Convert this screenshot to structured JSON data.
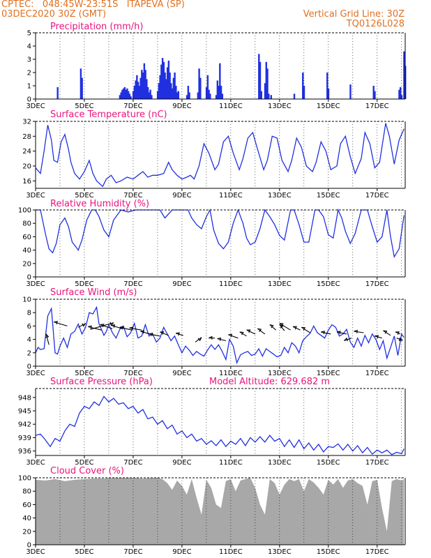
{
  "header": {
    "line1": "CPTEC:   048:45W-23:51S   ITAPEVA (SP)",
    "line2": "03DEC2020 30Z (GMT)",
    "right1": "Vertical Grid Line: 30Z",
    "right2": "TQ0126L028"
  },
  "colors": {
    "header": "#e07020",
    "title": "#e8147e",
    "line": "#2030e0",
    "bar": "#2030e0",
    "cloud": "#a8a8a8"
  },
  "x_labels": [
    "3DEC",
    "5DEC",
    "7DEC",
    "9DEC",
    "11DEC",
    "13DEC",
    "15DEC",
    "17DEC"
  ],
  "chart_data": [
    {
      "type": "bar",
      "title": "Precipitation (mm/h)",
      "ylim": [
        0,
        5
      ],
      "yticks": [
        0,
        1,
        2,
        3,
        4,
        5
      ],
      "x_unit": "days since 3DEC",
      "bars": [
        [
          0.9,
          0.9
        ],
        [
          1.85,
          2.3
        ],
        [
          1.9,
          1.6
        ],
        [
          3.45,
          0.3
        ],
        [
          3.5,
          0.5
        ],
        [
          3.55,
          0.7
        ],
        [
          3.6,
          0.8
        ],
        [
          3.65,
          0.9
        ],
        [
          3.7,
          0.7
        ],
        [
          3.75,
          0.8
        ],
        [
          3.8,
          0.6
        ],
        [
          3.85,
          0.4
        ],
        [
          3.9,
          0.2
        ],
        [
          4.0,
          0.6
        ],
        [
          4.05,
          1.0
        ],
        [
          4.1,
          1.4
        ],
        [
          4.15,
          1.8
        ],
        [
          4.2,
          1.3
        ],
        [
          4.25,
          1.0
        ],
        [
          4.3,
          1.6
        ],
        [
          4.35,
          2.2
        ],
        [
          4.4,
          2.0
        ],
        [
          4.45,
          2.7
        ],
        [
          4.5,
          2.2
        ],
        [
          4.55,
          1.5
        ],
        [
          4.6,
          0.9
        ],
        [
          4.65,
          0.5
        ],
        [
          4.7,
          0.7
        ],
        [
          4.75,
          0.3
        ],
        [
          5.0,
          0.6
        ],
        [
          5.05,
          1.2
        ],
        [
          5.1,
          1.8
        ],
        [
          5.15,
          2.6
        ],
        [
          5.2,
          3.1
        ],
        [
          5.25,
          2.8
        ],
        [
          5.3,
          2.0
        ],
        [
          5.35,
          1.5
        ],
        [
          5.4,
          2.4
        ],
        [
          5.45,
          2.9
        ],
        [
          5.5,
          2.0
        ],
        [
          5.55,
          1.2
        ],
        [
          5.6,
          0.8
        ],
        [
          5.65,
          1.6
        ],
        [
          5.7,
          2.0
        ],
        [
          5.75,
          1.0
        ],
        [
          5.8,
          0.5
        ],
        [
          5.85,
          0.6
        ],
        [
          6.2,
          0.3
        ],
        [
          6.25,
          1.0
        ],
        [
          6.3,
          0.5
        ],
        [
          6.65,
          0.5
        ],
        [
          6.7,
          2.3
        ],
        [
          6.75,
          1.6
        ],
        [
          7.0,
          0.9
        ],
        [
          7.05,
          1.8
        ],
        [
          7.1,
          0.7
        ],
        [
          7.15,
          0.4
        ],
        [
          7.4,
          0.3
        ],
        [
          7.45,
          1.4
        ],
        [
          7.5,
          1.0
        ],
        [
          7.55,
          2.7
        ],
        [
          7.6,
          1.0
        ],
        [
          7.65,
          0.4
        ],
        [
          9.15,
          3.4
        ],
        [
          9.2,
          2.8
        ],
        [
          9.25,
          0.6
        ],
        [
          9.4,
          1.2
        ],
        [
          9.45,
          2.8
        ],
        [
          9.5,
          2.3
        ],
        [
          9.55,
          0.4
        ],
        [
          9.65,
          0.3
        ],
        [
          10.6,
          0.4
        ],
        [
          10.95,
          2.0
        ],
        [
          11.0,
          1.0
        ],
        [
          11.95,
          2.0
        ],
        [
          12.0,
          0.8
        ],
        [
          12.9,
          1.1
        ],
        [
          13.85,
          1.0
        ],
        [
          13.9,
          0.6
        ],
        [
          14.9,
          0.7
        ],
        [
          14.95,
          0.9
        ],
        [
          15.0,
          0.3
        ],
        [
          15.1,
          3.6
        ],
        [
          15.15,
          2.5
        ]
      ]
    },
    {
      "type": "line",
      "title": "Surface Temperature (nC)",
      "ylim": [
        14,
        32
      ],
      "yticks": [
        16,
        20,
        24,
        28,
        32
      ],
      "x": [
        0.0,
        0.2,
        0.35,
        0.5,
        0.65,
        0.75,
        0.9,
        1.05,
        1.2,
        1.35,
        1.45,
        1.6,
        1.8,
        2.0,
        2.2,
        2.35,
        2.5,
        2.75,
        2.9,
        3.1,
        3.3,
        3.5,
        3.75,
        4.0,
        4.2,
        4.4,
        4.6,
        4.8,
        5.0,
        5.25,
        5.45,
        5.6,
        5.8,
        6.0,
        6.2,
        6.35,
        6.5,
        6.7,
        6.9,
        7.1,
        7.35,
        7.5,
        7.7,
        7.9,
        8.1,
        8.35,
        8.5,
        8.7,
        8.9,
        9.1,
        9.35,
        9.5,
        9.7,
        9.9,
        10.1,
        10.35,
        10.5,
        10.7,
        10.9,
        11.1,
        11.35,
        11.5,
        11.7,
        11.9,
        12.1,
        12.35,
        12.5,
        12.7,
        12.9,
        13.1,
        13.35,
        13.5,
        13.7,
        13.9,
        14.1,
        14.35,
        14.5,
        14.7,
        14.9,
        15.1
      ],
      "y": [
        19.5,
        18.0,
        24.0,
        31.0,
        27.0,
        21.5,
        21.0,
        26.5,
        28.5,
        24.5,
        21.0,
        18.0,
        16.5,
        18.5,
        21.5,
        18.0,
        16.0,
        14.5,
        16.5,
        17.5,
        15.5,
        16.0,
        17.0,
        16.5,
        17.5,
        18.5,
        17.0,
        17.5,
        17.5,
        18.0,
        21.0,
        19.0,
        17.5,
        16.5,
        17.0,
        17.5,
        16.5,
        20.0,
        26.0,
        23.5,
        19.0,
        20.5,
        26.5,
        28.0,
        23.5,
        19.0,
        22.0,
        27.5,
        29.0,
        24.5,
        19.0,
        21.5,
        28.0,
        27.5,
        21.5,
        18.5,
        21.5,
        27.5,
        25.0,
        20.0,
        18.5,
        21.0,
        26.5,
        24.0,
        19.0,
        20.0,
        26.0,
        28.0,
        22.5,
        18.0,
        22.0,
        29.0,
        26.0,
        19.5,
        21.0,
        31.5,
        28.0,
        20.5,
        27.0,
        30.0
      ]
    },
    {
      "type": "line",
      "title": "Relative Humidity (%)",
      "ylim": [
        0,
        100
      ],
      "yticks": [
        0,
        20,
        40,
        60,
        80,
        100
      ],
      "x": [
        0.0,
        0.2,
        0.4,
        0.55,
        0.7,
        0.85,
        1.0,
        1.2,
        1.35,
        1.5,
        1.65,
        1.75,
        1.9,
        2.1,
        2.3,
        2.45,
        2.6,
        2.8,
        3.0,
        3.2,
        3.5,
        3.8,
        4.1,
        4.3,
        4.5,
        4.7,
        4.9,
        5.1,
        5.3,
        5.6,
        5.8,
        6.0,
        6.25,
        6.4,
        6.6,
        6.8,
        7.0,
        7.15,
        7.3,
        7.5,
        7.7,
        7.9,
        8.1,
        8.3,
        8.5,
        8.65,
        8.8,
        9.0,
        9.2,
        9.4,
        9.6,
        9.8,
        10.0,
        10.2,
        10.45,
        10.6,
        10.8,
        11.0,
        11.2,
        11.45,
        11.6,
        11.8,
        12.0,
        12.2,
        12.4,
        12.55,
        12.7,
        12.9,
        13.1,
        13.35,
        13.6,
        13.8,
        14.0,
        14.2,
        14.4,
        14.55,
        14.7,
        14.9,
        15.1
      ],
      "y": [
        100,
        100,
        65,
        42,
        36,
        50,
        78,
        88,
        75,
        52,
        45,
        40,
        55,
        85,
        100,
        100,
        90,
        70,
        60,
        85,
        100,
        97,
        100,
        100,
        100,
        100,
        100,
        100,
        88,
        100,
        100,
        100,
        100,
        88,
        78,
        72,
        90,
        100,
        70,
        50,
        42,
        52,
        80,
        100,
        80,
        58,
        48,
        52,
        72,
        100,
        90,
        78,
        62,
        55,
        100,
        100,
        78,
        52,
        52,
        100,
        100,
        90,
        63,
        58,
        100,
        88,
        68,
        50,
        65,
        100,
        100,
        75,
        52,
        60,
        100,
        60,
        30,
        42,
        92
      ]
    },
    {
      "type": "line",
      "title": "Surface Wind (m/s)",
      "ylim": [
        0,
        10
      ],
      "yticks": [
        0,
        2,
        4,
        6,
        8,
        10
      ],
      "x": [
        0.0,
        0.1,
        0.2,
        0.35,
        0.5,
        0.65,
        0.8,
        0.9,
        1.0,
        1.15,
        1.3,
        1.45,
        1.6,
        1.75,
        1.9,
        2.05,
        2.2,
        2.35,
        2.5,
        2.6,
        2.7,
        2.8,
        2.9,
        3.0,
        3.15,
        3.3,
        3.45,
        3.6,
        3.75,
        3.9,
        4.05,
        4.2,
        4.35,
        4.5,
        4.65,
        4.8,
        4.95,
        5.1,
        5.25,
        5.4,
        5.55,
        5.7,
        5.85,
        6.0,
        6.15,
        6.3,
        6.45,
        6.6,
        6.75,
        6.9,
        7.05,
        7.2,
        7.35,
        7.5,
        7.65,
        7.8,
        7.95,
        8.1,
        8.25,
        8.4,
        8.55,
        8.7,
        8.85,
        9.0,
        9.15,
        9.3,
        9.45,
        9.6,
        9.75,
        9.9,
        10.05,
        10.2,
        10.35,
        10.5,
        10.65,
        10.8,
        10.95,
        11.1,
        11.25,
        11.4,
        11.55,
        11.7,
        11.85,
        12.0,
        12.15,
        12.3,
        12.45,
        12.6,
        12.75,
        12.9,
        13.05,
        13.2,
        13.35,
        13.5,
        13.65,
        13.8,
        13.95,
        14.1,
        14.25,
        14.4,
        14.55,
        14.7,
        14.85,
        15.0,
        15.1
      ],
      "y": [
        2.0,
        2.8,
        2.5,
        2.6,
        7.5,
        8.6,
        2.0,
        1.8,
        3.0,
        4.2,
        2.8,
        4.8,
        5.2,
        6.3,
        4.8,
        5.8,
        8.0,
        7.8,
        8.8,
        6.3,
        5.5,
        4.6,
        5.2,
        6.2,
        5.0,
        4.2,
        5.5,
        6.0,
        4.4,
        5.0,
        6.4,
        4.2,
        4.5,
        6.2,
        4.5,
        4.8,
        3.6,
        4.2,
        5.8,
        4.8,
        3.8,
        4.5,
        3.2,
        2.0,
        3.0,
        2.4,
        1.6,
        2.2,
        1.8,
        1.5,
        2.4,
        3.2,
        2.5,
        3.2,
        2.2,
        1.0,
        4.0,
        3.0,
        0.5,
        1.7,
        2.0,
        2.2,
        1.6,
        1.8,
        2.6,
        1.5,
        2.6,
        2.2,
        1.8,
        1.4,
        1.6,
        2.8,
        2.0,
        3.5,
        3.0,
        2.0,
        3.8,
        4.4,
        4.9,
        6.0,
        5.0,
        4.6,
        4.2,
        5.4,
        6.2,
        5.8,
        4.5,
        4.8,
        5.5,
        3.6,
        2.8,
        4.2,
        3.0,
        4.6,
        3.5,
        4.8,
        4.0,
        2.5,
        3.8,
        1.2,
        2.8,
        4.5,
        1.6,
        4.8,
        4.3
      ],
      "arrows": [
        [
          0.55,
          3.2,
          -0.12,
          1.6
        ],
        [
          1.3,
          6.0,
          -0.55,
          0.6
        ],
        [
          1.75,
          5.8,
          0.3,
          0.6
        ],
        [
          2.25,
          5.5,
          0.95,
          1.0
        ],
        [
          2.7,
          5.4,
          -0.55,
          0.5
        ],
        [
          3.15,
          5.6,
          -0.5,
          0.6
        ],
        [
          3.55,
          5.6,
          -0.45,
          0.5
        ],
        [
          3.95,
          5.4,
          -0.5,
          0.4
        ],
        [
          4.35,
          5.4,
          -0.5,
          0.3
        ],
        [
          4.7,
          4.8,
          -0.4,
          0.4
        ],
        [
          5.1,
          4.5,
          -0.45,
          0.3
        ],
        [
          5.45,
          4.6,
          -0.35,
          0.5
        ],
        [
          6.05,
          4.6,
          -0.3,
          0.3
        ],
        [
          6.55,
          3.6,
          0.25,
          0.7
        ],
        [
          7.35,
          4.2,
          -0.25,
          0.0
        ],
        [
          7.8,
          3.8,
          -0.35,
          0.3
        ],
        [
          8.3,
          4.2,
          -0.4,
          0.5
        ],
        [
          8.65,
          4.5,
          -0.28,
          0.6
        ],
        [
          9.0,
          4.8,
          -0.35,
          0.6
        ],
        [
          9.4,
          4.8,
          -0.3,
          0.8
        ],
        [
          9.85,
          5.4,
          -0.25,
          0.8
        ],
        [
          10.2,
          5.3,
          -0.2,
          0.9
        ],
        [
          10.45,
          5.4,
          -0.45,
          1.0
        ],
        [
          10.85,
          5.4,
          -0.3,
          0.5
        ],
        [
          11.25,
          5.0,
          -0.35,
          0.8
        ],
        [
          12.1,
          4.8,
          -0.4,
          0.3
        ],
        [
          12.75,
          4.8,
          -0.4,
          0.3
        ],
        [
          12.95,
          4.2,
          -0.3,
          -0.4
        ],
        [
          13.45,
          5.0,
          -0.4,
          0.2
        ],
        [
          14.2,
          4.2,
          -0.3,
          0.3
        ],
        [
          14.55,
          4.6,
          -0.3,
          0.7
        ],
        [
          14.8,
          4.2,
          0.25,
          -0.3
        ],
        [
          14.95,
          4.8,
          -0.2,
          0.3
        ]
      ]
    },
    {
      "type": "line",
      "title": "Surface Pressure (hPa)",
      "annotation": "Model Altitude: 629.682 m",
      "ylim": [
        935,
        950
      ],
      "yticks": [
        936,
        939,
        942,
        945,
        948
      ],
      "x": [
        0.0,
        0.2,
        0.4,
        0.6,
        0.8,
        1.0,
        1.2,
        1.4,
        1.6,
        1.8,
        2.0,
        2.2,
        2.4,
        2.6,
        2.8,
        3.0,
        3.2,
        3.4,
        3.6,
        3.8,
        4.0,
        4.2,
        4.4,
        4.6,
        4.8,
        5.0,
        5.2,
        5.4,
        5.6,
        5.8,
        6.0,
        6.2,
        6.4,
        6.6,
        6.8,
        7.0,
        7.2,
        7.4,
        7.6,
        7.8,
        8.0,
        8.2,
        8.4,
        8.6,
        8.8,
        9.0,
        9.2,
        9.4,
        9.6,
        9.8,
        10.0,
        10.2,
        10.4,
        10.6,
        10.8,
        11.0,
        11.2,
        11.4,
        11.6,
        11.8,
        12.0,
        12.2,
        12.4,
        12.6,
        12.8,
        13.0,
        13.2,
        13.4,
        13.6,
        13.8,
        14.0,
        14.2,
        14.4,
        14.6,
        14.8,
        15.0,
        15.1
      ],
      "y": [
        939.5,
        939.8,
        938.5,
        937.0,
        938.8,
        938.2,
        940.5,
        942.0,
        941.5,
        944.5,
        946.0,
        945.5,
        947.0,
        946.2,
        948.2,
        947.0,
        947.8,
        946.5,
        946.8,
        945.5,
        946.0,
        944.5,
        945.3,
        943.2,
        943.6,
        942.0,
        942.8,
        941.0,
        941.8,
        939.8,
        940.5,
        939.0,
        939.8,
        938.2,
        938.8,
        937.5,
        938.3,
        937.2,
        938.5,
        937.0,
        938.2,
        937.5,
        938.8,
        937.2,
        939.0,
        938.0,
        939.2,
        938.0,
        939.5,
        938.2,
        938.8,
        937.0,
        938.5,
        936.8,
        938.5,
        936.5,
        937.8,
        936.2,
        937.5,
        935.8,
        937.0,
        936.8,
        937.6,
        936.2,
        937.5,
        936.0,
        937.2,
        935.6,
        936.8,
        935.3,
        936.2,
        935.6,
        936.2,
        935.2,
        935.7,
        935.4,
        936.5
      ]
    },
    {
      "type": "area",
      "title": "Cloud Cover (%)",
      "ylim": [
        0,
        100
      ],
      "yticks": [
        0,
        20,
        40,
        60,
        80,
        100
      ],
      "x": [
        0.0,
        0.4,
        0.8,
        1.2,
        1.6,
        2.0,
        2.4,
        2.8,
        3.2,
        3.6,
        4.0,
        4.4,
        4.8,
        5.0,
        5.2,
        5.4,
        5.6,
        5.8,
        6.0,
        6.2,
        6.4,
        6.6,
        6.8,
        7.0,
        7.2,
        7.4,
        7.6,
        7.8,
        8.0,
        8.2,
        8.4,
        8.6,
        8.8,
        9.0,
        9.2,
        9.4,
        9.6,
        9.8,
        10.0,
        10.2,
        10.4,
        10.6,
        10.8,
        11.0,
        11.2,
        11.4,
        11.6,
        11.8,
        12.0,
        12.2,
        12.4,
        12.6,
        12.8,
        13.0,
        13.2,
        13.4,
        13.6,
        13.8,
        14.0,
        14.2,
        14.4,
        14.6,
        14.8,
        15.0,
        15.1
      ],
      "y": [
        97,
        96,
        98,
        95,
        97,
        98,
        99,
        99,
        100,
        100,
        100,
        99,
        100,
        100,
        98,
        92,
        82,
        96,
        88,
        75,
        98,
        70,
        45,
        97,
        85,
        60,
        55,
        95,
        98,
        80,
        96,
        98,
        100,
        85,
        60,
        45,
        98,
        92,
        75,
        90,
        98,
        95,
        98,
        80,
        98,
        93,
        85,
        75,
        97,
        90,
        98,
        85,
        96,
        98,
        92,
        88,
        60,
        95,
        97,
        55,
        20,
        95,
        98,
        96,
        98
      ]
    }
  ]
}
